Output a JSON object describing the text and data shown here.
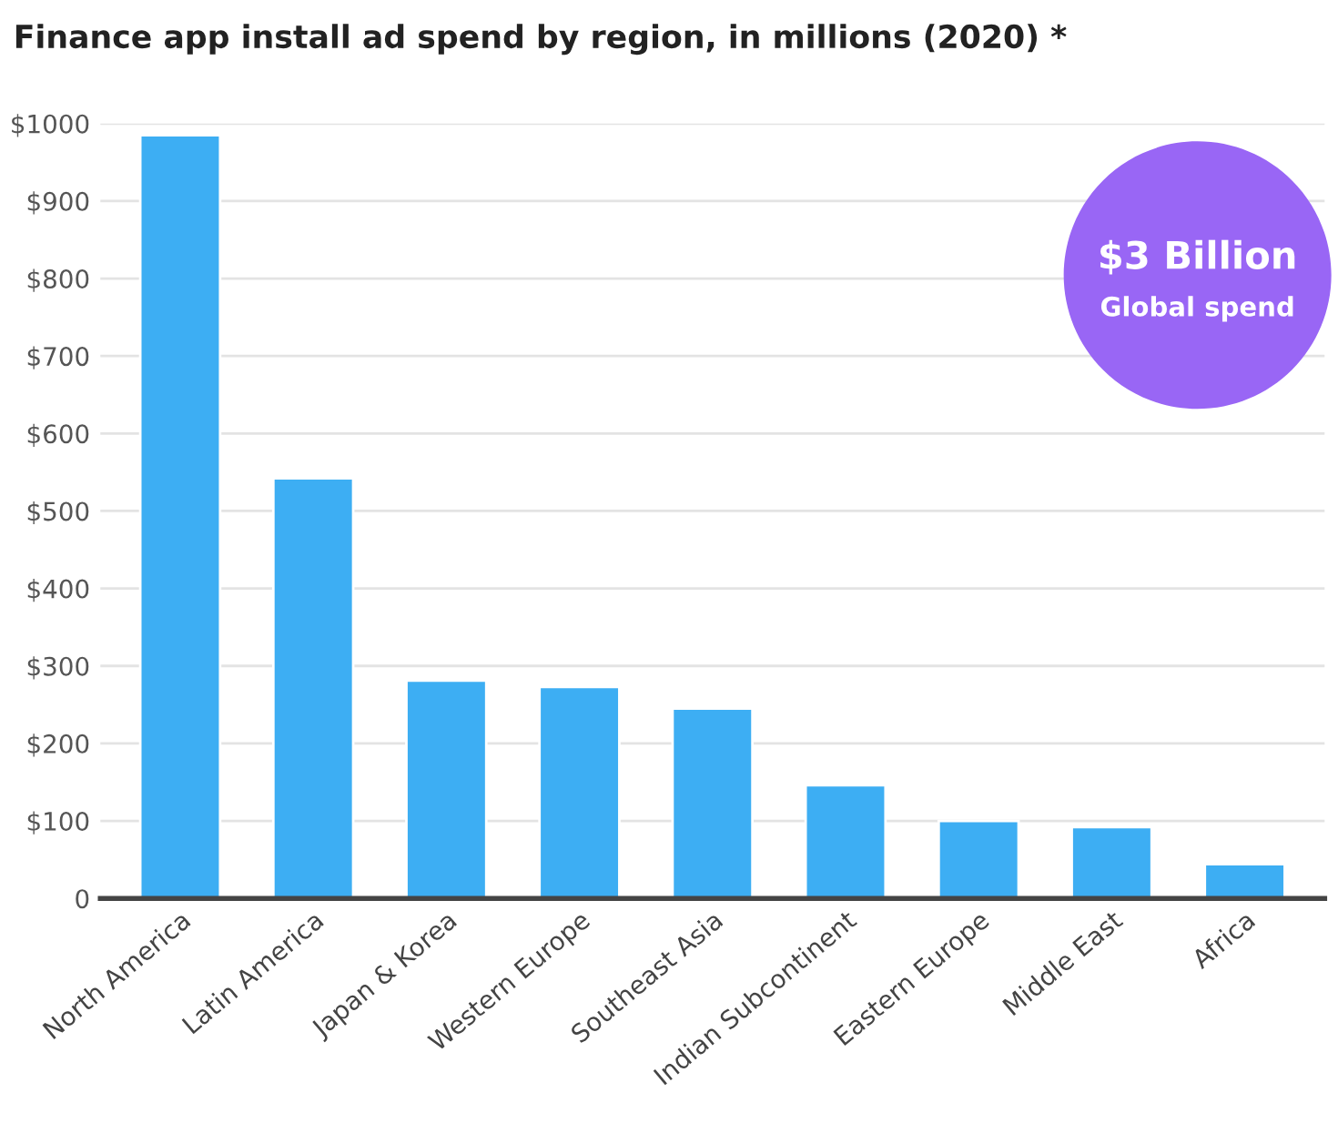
{
  "chart_data": {
    "type": "bar",
    "title": "Finance app install ad spend by region, in millions (2020) *",
    "categories": [
      "North America",
      "Latin America",
      "Japan & Korea",
      "Western Europe",
      "Southeast Asia",
      "Indian Subcontinent",
      "Eastern Europe",
      "Middle East",
      "Africa"
    ],
    "values": [
      985,
      542,
      281,
      273,
      245,
      146,
      100,
      92,
      44
    ],
    "color": "#3daef3",
    "ylim": [
      0,
      1000
    ],
    "yticks": [
      {
        "value": 0,
        "label": "0"
      },
      {
        "value": 100,
        "label": "$100"
      },
      {
        "value": 200,
        "label": "$200"
      },
      {
        "value": 300,
        "label": "$300"
      },
      {
        "value": 400,
        "label": "$400"
      },
      {
        "value": 500,
        "label": "$500"
      },
      {
        "value": 600,
        "label": "$600"
      },
      {
        "value": 700,
        "label": "$700"
      },
      {
        "value": 800,
        "label": "$800"
      },
      {
        "value": 900,
        "label": "$900"
      },
      {
        "value": 1000,
        "label": "$1000"
      }
    ],
    "grid": "y",
    "annotations": [
      "$3 Billion",
      "Global spend"
    ]
  }
}
